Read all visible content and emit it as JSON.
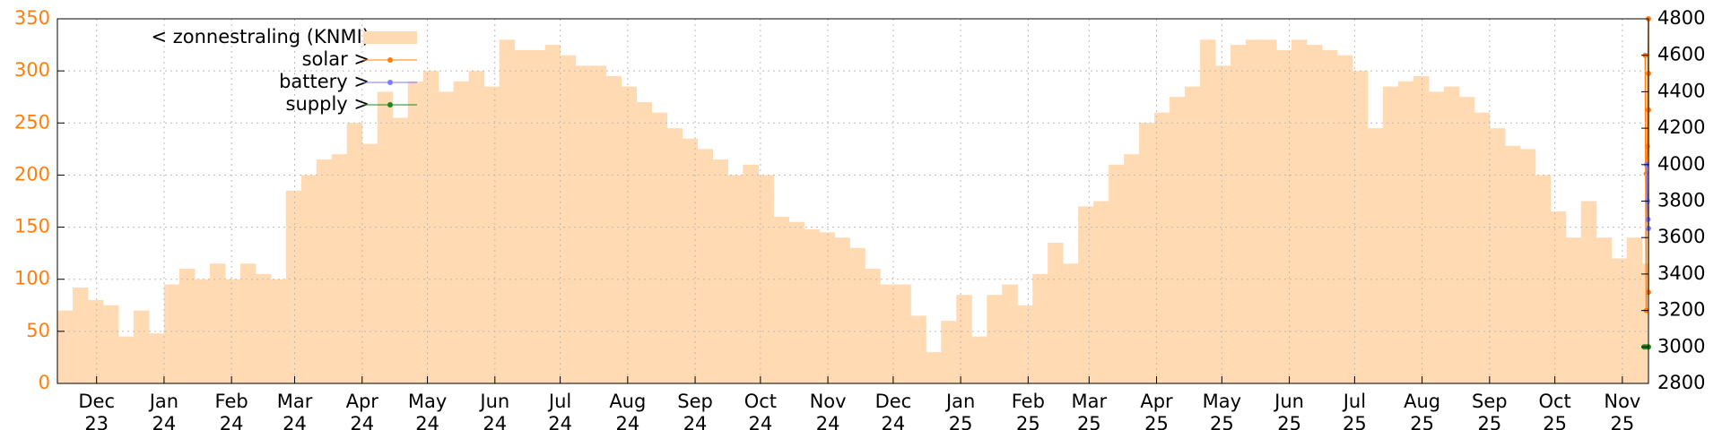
{
  "chart_data": {
    "type": "line",
    "xlim": [
      0,
      731
    ],
    "xticks": [
      {
        "value": 18,
        "label": [
          "Dec",
          "23"
        ]
      },
      {
        "value": 49,
        "label": [
          "Jan",
          "24"
        ]
      },
      {
        "value": 80,
        "label": [
          "Feb",
          "24"
        ]
      },
      {
        "value": 109,
        "label": [
          "Mar",
          "24"
        ]
      },
      {
        "value": 140,
        "label": [
          "Apr",
          "24"
        ]
      },
      {
        "value": 170,
        "label": [
          "May",
          "24"
        ]
      },
      {
        "value": 201,
        "label": [
          "Jun",
          "24"
        ]
      },
      {
        "value": 231,
        "label": [
          "Jul",
          "24"
        ]
      },
      {
        "value": 262,
        "label": [
          "Aug",
          "24"
        ]
      },
      {
        "value": 293,
        "label": [
          "Sep",
          "24"
        ]
      },
      {
        "value": 323,
        "label": [
          "Oct",
          "24"
        ]
      },
      {
        "value": 354,
        "label": [
          "Nov",
          "24"
        ]
      },
      {
        "value": 384,
        "label": [
          "Dec",
          "24"
        ]
      },
      {
        "value": 415,
        "label": [
          "Jan",
          "25"
        ]
      },
      {
        "value": 446,
        "label": [
          "Feb",
          "25"
        ]
      },
      {
        "value": 474,
        "label": [
          "Mar",
          "25"
        ]
      },
      {
        "value": 505,
        "label": [
          "Apr",
          "25"
        ]
      },
      {
        "value": 535,
        "label": [
          "May",
          "25"
        ]
      },
      {
        "value": 566,
        "label": [
          "Jun",
          "25"
        ]
      },
      {
        "value": 596,
        "label": [
          "Jul",
          "25"
        ]
      },
      {
        "value": 627,
        "label": [
          "Aug",
          "25"
        ]
      },
      {
        "value": 658,
        "label": [
          "Sep",
          "25"
        ]
      },
      {
        "value": 688,
        "label": [
          "Oct",
          "25"
        ]
      },
      {
        "value": 719,
        "label": [
          "Nov",
          "25"
        ]
      }
    ],
    "ylim": [
      0,
      350
    ],
    "yticks": [
      0,
      50,
      100,
      150,
      200,
      250,
      300,
      350
    ],
    "ytick_color": "#ff7f0e",
    "y2lim": [
      2800,
      4800
    ],
    "y2ticks": [
      2800,
      3000,
      3200,
      3400,
      3600,
      3800,
      4000,
      4200,
      4400,
      4600,
      4800
    ],
    "grid": true,
    "legend": "top-left",
    "series": [
      {
        "name": "< zonnestraling (KNMI)",
        "color": "#ffdab3",
        "style": "steps",
        "axis": "y",
        "x": [
          0,
          7,
          14,
          21,
          28,
          35,
          42,
          49,
          56,
          63,
          70,
          77,
          84,
          91,
          98,
          105,
          112,
          119,
          126,
          133,
          140,
          147,
          154,
          161,
          168,
          175,
          182,
          189,
          196,
          203,
          210,
          217,
          224,
          231,
          238,
          245,
          252,
          259,
          266,
          273,
          280,
          287,
          294,
          301,
          308,
          315,
          322,
          329,
          336,
          343,
          350,
          357,
          364,
          371,
          378,
          385,
          392,
          399,
          406,
          413,
          420,
          427,
          434,
          441,
          448,
          455,
          462,
          469,
          476,
          483,
          490,
          497,
          504,
          511,
          518,
          525,
          532,
          539,
          546,
          553,
          560,
          567,
          574,
          581,
          588,
          595,
          602,
          609,
          616,
          623,
          630,
          637,
          644,
          651,
          658,
          665,
          672,
          679,
          686,
          693,
          700,
          707,
          714,
          721,
          728
        ],
        "values": [
          70,
          92,
          80,
          75,
          45,
          70,
          48,
          95,
          110,
          100,
          115,
          100,
          115,
          105,
          100,
          185,
          200,
          215,
          220,
          250,
          230,
          280,
          255,
          290,
          300,
          280,
          290,
          300,
          285,
          330,
          320,
          320,
          325,
          315,
          305,
          305,
          295,
          285,
          270,
          260,
          245,
          235,
          225,
          215,
          200,
          210,
          200,
          160,
          155,
          148,
          145,
          140,
          130,
          110,
          95,
          95,
          65,
          30,
          60,
          85,
          45,
          85,
          95,
          75,
          105,
          135,
          115,
          170,
          175,
          210,
          220,
          250,
          260,
          275,
          285,
          330,
          305,
          325,
          330,
          330,
          320,
          330,
          325,
          320,
          315,
          300,
          245,
          285,
          290,
          295,
          280,
          285,
          275,
          260,
          245,
          228,
          225,
          200,
          165,
          140,
          175,
          140,
          120,
          140,
          115
        ]
      },
      {
        "name": "solar >",
        "color": "#ff7f0e",
        "style": "linespoints",
        "axis": "y2",
        "x": [
          729.5,
          730,
          730,
          730.5,
          731,
          731,
          731,
          731
        ],
        "values": [
          4600,
          3200,
          3950,
          4100,
          4800,
          4500,
          4300,
          3300
        ]
      },
      {
        "name": "battery >",
        "color": "#7b7bff",
        "style": "linespoints",
        "axis": "y2",
        "x": [
          730.2,
          730.5,
          730.8,
          731
        ],
        "values": [
          4000,
          3800,
          3700,
          3650
        ]
      },
      {
        "name": "supply >",
        "color": "#1a8a1a",
        "style": "linespoints",
        "axis": "y2",
        "x": [
          729,
          730,
          731
        ],
        "values": [
          3000,
          3000,
          3000
        ]
      }
    ]
  }
}
